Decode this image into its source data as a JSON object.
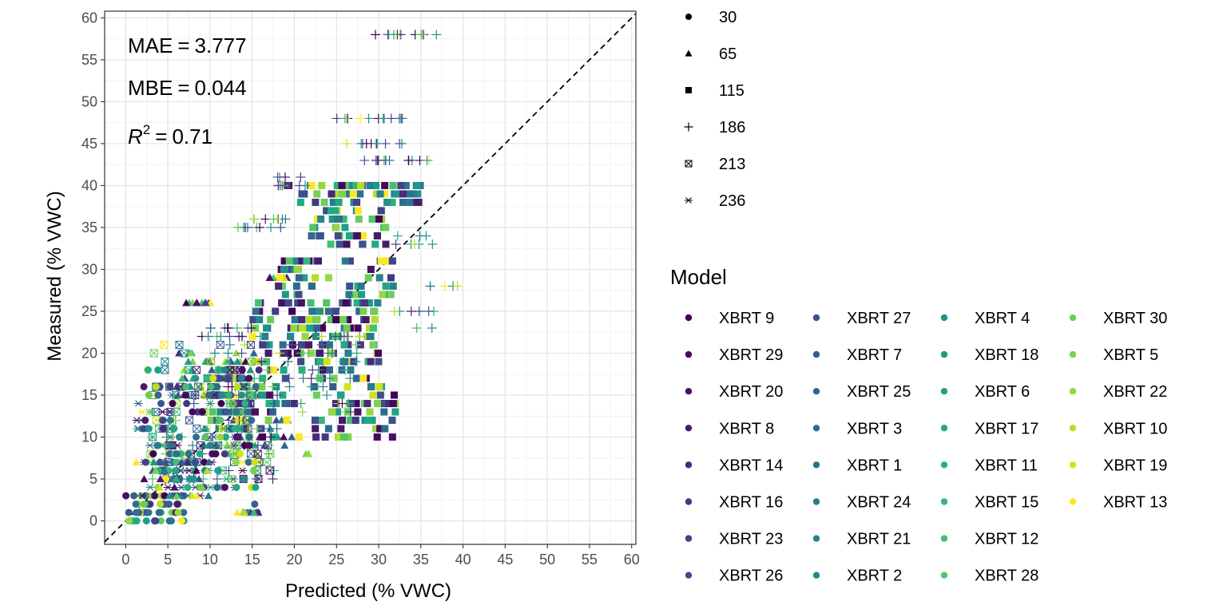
{
  "chart_data": {
    "type": "scatter",
    "xlabel": "Predicted (% VWC)",
    "ylabel": "Measured (% VWC)",
    "xlim": [
      -2.5,
      60.5
    ],
    "ylim": [
      -2.8,
      60.8
    ],
    "x_ticks": [
      0,
      5,
      10,
      15,
      20,
      25,
      30,
      35,
      40,
      45,
      50,
      55,
      60
    ],
    "y_ticks": [
      0,
      5,
      10,
      15,
      20,
      25,
      30,
      35,
      40,
      45,
      50,
      55,
      60
    ],
    "x_tick_labels": [
      "0",
      "5",
      "10",
      "15",
      "20",
      "25",
      "30",
      "35",
      "40",
      "45",
      "50",
      "55",
      "60"
    ],
    "y_tick_labels": [
      "0",
      "5",
      "10",
      "15",
      "20",
      "25",
      "30",
      "35",
      "40",
      "45",
      "50",
      "55",
      "60"
    ],
    "grid": true,
    "reference_line": "y = x dashed",
    "annotations": {
      "mae_label": "MAE",
      "mae_value": "3.777",
      "mbe_label": "MBE",
      "mbe_value": "0.044",
      "r2_label": "R",
      "r2_exp": "2",
      "r2_value": "0.71",
      "eq": "="
    },
    "shape_legend": {
      "title": "",
      "items": [
        {
          "label": "30",
          "shape": "circle"
        },
        {
          "label": "65",
          "shape": "triangle"
        },
        {
          "label": "115",
          "shape": "square"
        },
        {
          "label": "186",
          "shape": "plus"
        },
        {
          "label": "213",
          "shape": "boxed-x"
        },
        {
          "label": "236",
          "shape": "asterisk"
        }
      ]
    },
    "color_legend": {
      "title": "Model",
      "items": [
        {
          "label": "XBRT 9",
          "color": "#440154"
        },
        {
          "label": "XBRT 29",
          "color": "#46085c"
        },
        {
          "label": "XBRT 20",
          "color": "#471063"
        },
        {
          "label": "XBRT 8",
          "color": "#481a6c"
        },
        {
          "label": "XBRT 14",
          "color": "#472a7a"
        },
        {
          "label": "XBRT 16",
          "color": "#443983"
        },
        {
          "label": "XBRT 23",
          "color": "#414487"
        },
        {
          "label": "XBRT 26",
          "color": "#3e4c8a"
        },
        {
          "label": "XBRT 27",
          "color": "#3b528b"
        },
        {
          "label": "XBRT 7",
          "color": "#375b8d"
        },
        {
          "label": "XBRT 25",
          "color": "#33638d"
        },
        {
          "label": "XBRT 3",
          "color": "#2f6b8e"
        },
        {
          "label": "XBRT 1",
          "color": "#2c728e"
        },
        {
          "label": "XBRT 24",
          "color": "#297a8e"
        },
        {
          "label": "XBRT 21",
          "color": "#26828e"
        },
        {
          "label": "XBRT 2",
          "color": "#23898e"
        },
        {
          "label": "XBRT 4",
          "color": "#21918c"
        },
        {
          "label": "XBRT 18",
          "color": "#1f988b"
        },
        {
          "label": "XBRT 6",
          "color": "#1fa088"
        },
        {
          "label": "XBRT 17",
          "color": "#22a884"
        },
        {
          "label": "XBRT 11",
          "color": "#2ab07f"
        },
        {
          "label": "XBRT 15",
          "color": "#35b779"
        },
        {
          "label": "XBRT 12",
          "color": "#44bf70"
        },
        {
          "label": "XBRT 28",
          "color": "#54c568"
        },
        {
          "label": "XBRT 30",
          "color": "#6ccd5a"
        },
        {
          "label": "XBRT 5",
          "color": "#7ad151"
        },
        {
          "label": "XBRT 22",
          "color": "#95d840"
        },
        {
          "label": "XBRT 10",
          "color": "#b8de29"
        },
        {
          "label": "XBRT 19",
          "color": "#d2e21b"
        },
        {
          "label": "XBRT 13",
          "color": "#fde725"
        }
      ]
    },
    "clusters": [
      {
        "shape": "circle",
        "y": [
          0,
          1,
          2,
          3
        ],
        "x_range": [
          0,
          7
        ],
        "n": 60
      },
      {
        "shape": "circle",
        "y": [
          1,
          2
        ],
        "x_range": [
          14,
          16
        ],
        "n": 3
      },
      {
        "shape": "triangle",
        "y": [
          26
        ],
        "x_range": [
          7,
          11
        ],
        "n": 10
      },
      {
        "shape": "triangle",
        "y": [
          29
        ],
        "x_range": [
          17,
          20
        ],
        "n": 10
      },
      {
        "shape": "triangle",
        "y": [
          1
        ],
        "x_range": [
          13,
          16
        ],
        "n": 8
      },
      {
        "shape": "triangle",
        "y": [
          15,
          16,
          17,
          18,
          19,
          20
        ],
        "x_range": [
          6,
          16
        ],
        "n": 60
      },
      {
        "shape": "triangle",
        "y": [
          8,
          9,
          10,
          11,
          12
        ],
        "x_range": [
          8,
          22
        ],
        "n": 30
      },
      {
        "shape": "square",
        "y": [
          38,
          39,
          40
        ],
        "x_range": [
          19,
          35
        ],
        "n": 60
      },
      {
        "shape": "square",
        "y": [
          33,
          34,
          35,
          36,
          37
        ],
        "x_range": [
          22,
          31
        ],
        "n": 45
      },
      {
        "shape": "square",
        "y": [
          27,
          28,
          29,
          30,
          31
        ],
        "x_range": [
          18,
          32
        ],
        "n": 55
      },
      {
        "shape": "square",
        "y": [
          19,
          20,
          21,
          22,
          23,
          24,
          25,
          26
        ],
        "x_range": [
          15,
          30
        ],
        "n": 140
      },
      {
        "shape": "square",
        "y": [
          10,
          11,
          12,
          13,
          14,
          15,
          16,
          17,
          18
        ],
        "x_range": [
          10,
          32
        ],
        "n": 140
      },
      {
        "shape": "plus",
        "y": [
          58
        ],
        "x_range": [
          29,
          37
        ],
        "n": 14
      },
      {
        "shape": "plus",
        "y": [
          48
        ],
        "x_range": [
          25,
          33
        ],
        "n": 14
      },
      {
        "shape": "plus",
        "y": [
          45
        ],
        "x_range": [
          25,
          34
        ],
        "n": 10
      },
      {
        "shape": "plus",
        "y": [
          43
        ],
        "x_range": [
          28,
          36
        ],
        "n": 16
      },
      {
        "shape": "plus",
        "y": [
          41,
          40
        ],
        "x_range": [
          18,
          23
        ],
        "n": 10
      },
      {
        "shape": "plus",
        "y": [
          36,
          35
        ],
        "x_range": [
          13,
          19
        ],
        "n": 16
      },
      {
        "shape": "plus",
        "y": [
          34,
          33
        ],
        "x_range": [
          32,
          38
        ],
        "n": 8
      },
      {
        "shape": "plus",
        "y": [
          28
        ],
        "x_range": [
          35,
          40
        ],
        "n": 6
      },
      {
        "shape": "plus",
        "y": [
          23,
          22
        ],
        "x_range": [
          10,
          16
        ],
        "n": 10
      },
      {
        "shape": "plus",
        "y": [
          25,
          23
        ],
        "x_range": [
          31,
          37
        ],
        "n": 8
      },
      {
        "shape": "plus",
        "y": [
          13,
          14,
          15,
          16,
          17,
          18,
          19,
          20,
          21,
          22
        ],
        "x_range": [
          8,
          28
        ],
        "n": 80
      },
      {
        "shape": "plus",
        "y": [
          5,
          6,
          7,
          8,
          9,
          10,
          11,
          12
        ],
        "x_range": [
          3,
          18
        ],
        "n": 70
      },
      {
        "shape": "boxed-x",
        "y": [
          10,
          11,
          12,
          13,
          14,
          15,
          16,
          17,
          18,
          19,
          20,
          21
        ],
        "x_range": [
          3,
          15
        ],
        "n": 60
      },
      {
        "shape": "boxed-x",
        "y": [
          5,
          6,
          7,
          8,
          9
        ],
        "x_range": [
          2,
          19
        ],
        "n": 30
      },
      {
        "shape": "asterisk",
        "y": [
          3,
          4,
          5,
          6,
          7,
          8,
          9,
          10,
          11,
          12,
          13,
          14,
          15,
          16
        ],
        "x_range": [
          1,
          14
        ],
        "n": 70
      },
      {
        "shape": "circle",
        "y": [
          4,
          5,
          6,
          7,
          8,
          9,
          10,
          11,
          12,
          13,
          14,
          15,
          16,
          17,
          18
        ],
        "x_range": [
          2,
          16
        ],
        "n": 120
      },
      {
        "shape": "triangle",
        "y": [
          3,
          4,
          5,
          6,
          7
        ],
        "x_range": [
          1,
          10
        ],
        "n": 30
      }
    ]
  }
}
